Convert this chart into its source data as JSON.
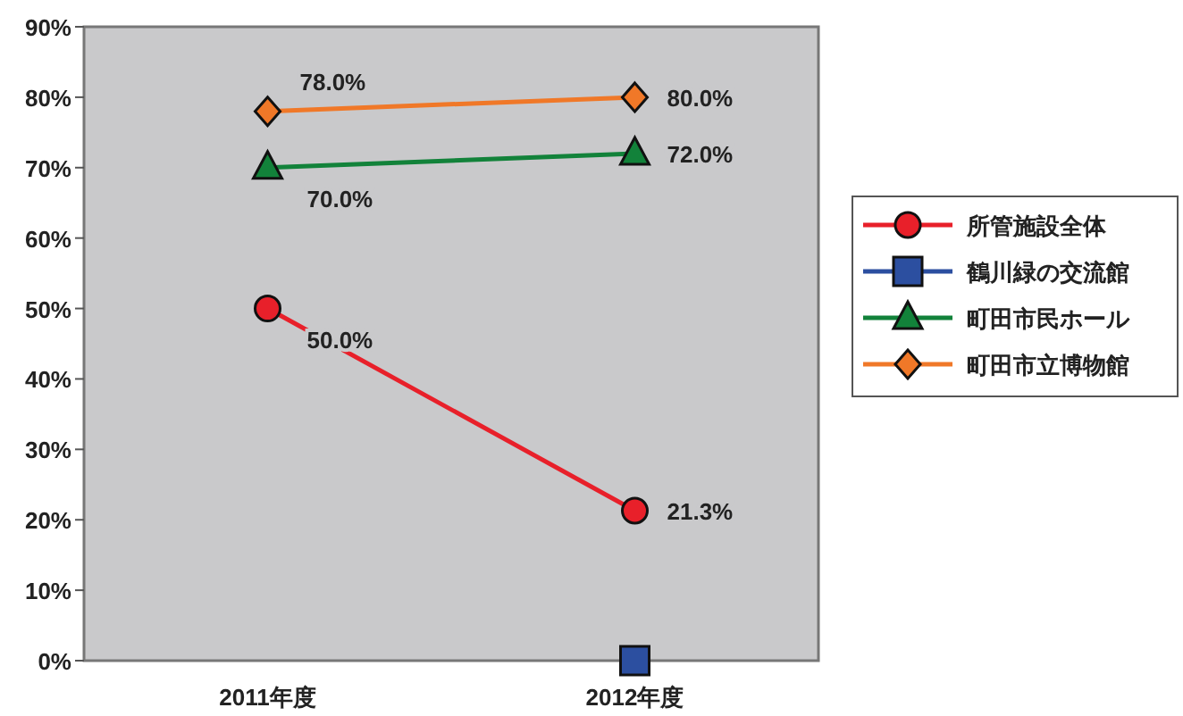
{
  "chart_data": {
    "type": "line",
    "categories": [
      "2011年度",
      "2012年度"
    ],
    "ylim": [
      0,
      90
    ],
    "yticks": [
      {
        "value": 0,
        "label": "0%"
      },
      {
        "value": 10,
        "label": "10%"
      },
      {
        "value": 20,
        "label": "20%"
      },
      {
        "value": 30,
        "label": "30%"
      },
      {
        "value": 40,
        "label": "40%"
      },
      {
        "value": 50,
        "label": "50%"
      },
      {
        "value": 60,
        "label": "60%"
      },
      {
        "value": 70,
        "label": "70%"
      },
      {
        "value": 80,
        "label": "80%"
      },
      {
        "value": 90,
        "label": "90%"
      }
    ],
    "grid": false,
    "legend": "right",
    "line_style": "solid",
    "series": [
      {
        "name": "所管施設全体",
        "color": "#e8202a",
        "marker": "circle",
        "values": [
          50.0,
          21.3
        ],
        "value_labels": [
          "50.0%",
          "21.3%"
        ]
      },
      {
        "name": "鶴川緑の交流館",
        "color": "#2c4fa0",
        "marker": "square",
        "values": [
          null,
          0
        ],
        "value_labels": [
          null,
          null
        ]
      },
      {
        "name": "町田市民ホール",
        "color": "#12823a",
        "marker": "triangle",
        "values": [
          70.0,
          72.0
        ],
        "value_labels": [
          "70.0%",
          "72.0%"
        ]
      },
      {
        "name": "町田市立博物館",
        "color": "#f07828",
        "marker": "diamond",
        "values": [
          78.0,
          80.0
        ],
        "value_labels": [
          "78.0%",
          "80.0%"
        ]
      }
    ]
  }
}
